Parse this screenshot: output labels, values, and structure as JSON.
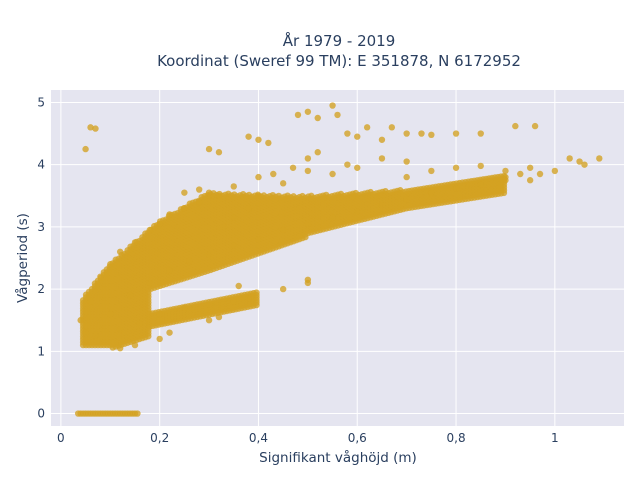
{
  "chart_data": {
    "type": "scatter",
    "title": "År 1979 - 2019",
    "subtitle": "Koordinat (Sweref 99 TM): E 351878, N 6172952",
    "xlabel": "Signifikant våghöjd (m)",
    "ylabel": "Vågperiod (s)",
    "xlim": [
      -0.02,
      1.14
    ],
    "ylim": [
      -0.2,
      5.2
    ],
    "x_ticks": [
      0,
      0.2,
      0.4,
      0.6,
      0.8,
      1
    ],
    "x_tick_labels": [
      "0",
      "0,2",
      "0,4",
      "0,6",
      "0,8",
      "1"
    ],
    "y_ticks": [
      0,
      1,
      2,
      3,
      4,
      5
    ],
    "y_tick_labels": [
      "0",
      "1",
      "2",
      "3",
      "4",
      "5"
    ],
    "grid": true,
    "marker_color": "#d4a121",
    "plot_bgcolor": "#e5e5f0",
    "series": [
      {
        "points": [
          [
            0.05,
            4.25
          ],
          [
            0.06,
            4.6
          ],
          [
            0.07,
            4.58
          ],
          [
            0.04,
            1.5
          ],
          [
            0.05,
            1.3
          ],
          [
            0.06,
            1.8
          ],
          [
            0.07,
            1.25
          ],
          [
            0.08,
            2.2
          ],
          [
            0.1,
            2.4
          ],
          [
            0.12,
            2.6
          ],
          [
            0.15,
            2.75
          ],
          [
            0.18,
            2.95
          ],
          [
            0.2,
            3.05
          ],
          [
            0.22,
            3.2
          ],
          [
            0.25,
            3.3
          ],
          [
            0.28,
            3.4
          ],
          [
            0.3,
            3.5
          ],
          [
            0.35,
            3.65
          ],
          [
            0.4,
            3.8
          ],
          [
            0.43,
            3.85
          ],
          [
            0.47,
            3.95
          ],
          [
            0.5,
            4.1
          ],
          [
            0.52,
            4.2
          ],
          [
            0.1,
            1.6
          ],
          [
            0.14,
            1.9
          ],
          [
            0.18,
            2.1
          ],
          [
            0.22,
            2.3
          ],
          [
            0.26,
            2.45
          ],
          [
            0.3,
            2.55
          ],
          [
            0.35,
            2.7
          ],
          [
            0.4,
            2.8
          ],
          [
            0.45,
            2.95
          ],
          [
            0.5,
            3.05
          ],
          [
            0.55,
            3.15
          ],
          [
            0.6,
            3.25
          ],
          [
            0.65,
            3.35
          ],
          [
            0.7,
            3.45
          ],
          [
            0.75,
            3.55
          ],
          [
            0.8,
            3.62
          ],
          [
            0.85,
            3.68
          ],
          [
            0.9,
            3.75
          ],
          [
            0.12,
            1.35
          ],
          [
            0.16,
            1.45
          ],
          [
            0.2,
            1.6
          ],
          [
            0.25,
            1.7
          ],
          [
            0.3,
            1.75
          ],
          [
            0.35,
            1.8
          ],
          [
            0.38,
            1.85
          ],
          [
            0.12,
            1.05
          ],
          [
            0.15,
            1.1
          ],
          [
            0.2,
            1.2
          ],
          [
            0.22,
            1.3
          ],
          [
            0.25,
            3.55
          ],
          [
            0.28,
            3.6
          ],
          [
            0.3,
            3.55
          ],
          [
            0.32,
            3.5
          ],
          [
            0.4,
            3.5
          ],
          [
            0.45,
            3.7
          ],
          [
            0.5,
            3.9
          ],
          [
            0.55,
            3.85
          ],
          [
            0.58,
            4.0
          ],
          [
            0.6,
            3.95
          ],
          [
            0.65,
            4.1
          ],
          [
            0.7,
            4.05
          ],
          [
            0.48,
            4.8
          ],
          [
            0.5,
            4.85
          ],
          [
            0.52,
            4.75
          ],
          [
            0.55,
            4.95
          ],
          [
            0.56,
            4.8
          ],
          [
            0.58,
            4.5
          ],
          [
            0.6,
            4.45
          ],
          [
            0.62,
            4.6
          ],
          [
            0.65,
            4.4
          ],
          [
            0.67,
            4.6
          ],
          [
            0.7,
            4.5
          ],
          [
            0.73,
            4.5
          ],
          [
            0.75,
            4.48
          ],
          [
            0.8,
            4.5
          ],
          [
            0.85,
            4.5
          ],
          [
            0.92,
            4.62
          ],
          [
            0.96,
            4.62
          ],
          [
            0.3,
            4.25
          ],
          [
            0.32,
            4.2
          ],
          [
            0.38,
            4.45
          ],
          [
            0.4,
            4.4
          ],
          [
            0.42,
            4.35
          ],
          [
            0.7,
            3.8
          ],
          [
            0.75,
            3.9
          ],
          [
            0.8,
            3.95
          ],
          [
            0.85,
            3.98
          ],
          [
            0.9,
            3.9
          ],
          [
            0.95,
            3.95
          ],
          [
            0.9,
            3.8
          ],
          [
            0.93,
            3.85
          ],
          [
            0.95,
            3.75
          ],
          [
            0.97,
            3.85
          ],
          [
            1.0,
            3.9
          ],
          [
            1.03,
            4.1
          ],
          [
            1.05,
            4.05
          ],
          [
            1.06,
            4.0
          ],
          [
            1.09,
            4.1
          ],
          [
            0.45,
            2.0
          ],
          [
            0.5,
            2.1
          ],
          [
            0.5,
            2.15
          ],
          [
            0.36,
            2.05
          ],
          [
            0.3,
            1.5
          ],
          [
            0.32,
            1.55
          ],
          [
            0.33,
            3.0
          ],
          [
            0.35,
            3.15
          ],
          [
            0.38,
            3.3
          ]
        ]
      }
    ],
    "zero_band": {
      "x_from": 0.035,
      "x_to": 0.155,
      "y": 0
    }
  }
}
